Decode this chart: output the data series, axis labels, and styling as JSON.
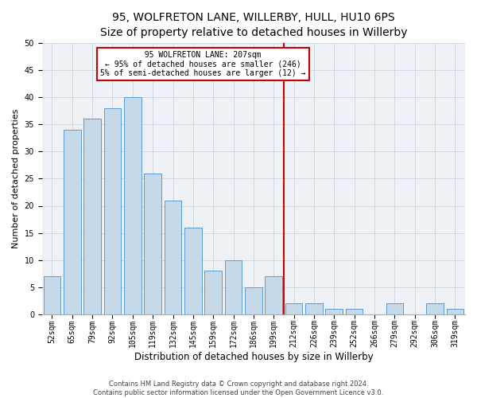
{
  "title1": "95, WOLFRETON LANE, WILLERBY, HULL, HU10 6PS",
  "title2": "Size of property relative to detached houses in Willerby",
  "xlabel": "Distribution of detached houses by size in Willerby",
  "ylabel": "Number of detached properties",
  "footer1": "Contains HM Land Registry data © Crown copyright and database right 2024.",
  "footer2": "Contains public sector information licensed under the Open Government Licence v3.0.",
  "bar_labels": [
    "52sqm",
    "65sqm",
    "79sqm",
    "92sqm",
    "105sqm",
    "119sqm",
    "132sqm",
    "145sqm",
    "159sqm",
    "172sqm",
    "186sqm",
    "199sqm",
    "212sqm",
    "226sqm",
    "239sqm",
    "252sqm",
    "266sqm",
    "279sqm",
    "292sqm",
    "306sqm",
    "319sqm"
  ],
  "bar_values": [
    7,
    34,
    36,
    38,
    40,
    26,
    21,
    16,
    8,
    10,
    5,
    7,
    2,
    2,
    1,
    1,
    0,
    2,
    0,
    2,
    1
  ],
  "bar_color": "#c6d9e8",
  "bar_edge_color": "#5b9bd5",
  "annotation_text": "  95 WOLFRETON LANE: 207sqm  \n← 95% of detached houses are smaller (246)\n5% of semi-detached houses are larger (12) →",
  "annotation_box_color": "#ffffff",
  "annotation_box_edge": "#cc0000",
  "vline_color": "#cc0000",
  "ylim": [
    0,
    50
  ],
  "yticks": [
    0,
    5,
    10,
    15,
    20,
    25,
    30,
    35,
    40,
    45,
    50
  ],
  "grid_color": "#d0d8e0",
  "bg_color": "#eef2f7",
  "title1_fontsize": 10,
  "title2_fontsize": 8.5,
  "xlabel_fontsize": 8.5,
  "ylabel_fontsize": 8,
  "tick_fontsize": 7,
  "footer_fontsize": 6
}
